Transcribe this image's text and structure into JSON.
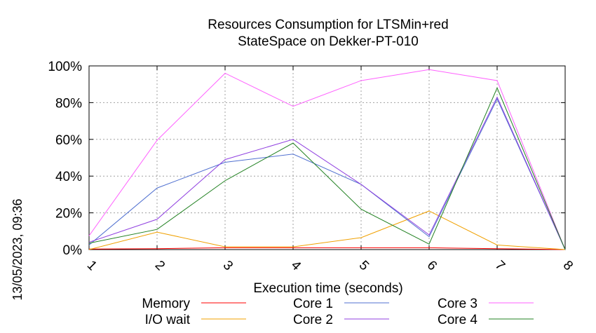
{
  "chart_data": {
    "type": "line",
    "title": [
      "Resources Consumption for LTSMin+red",
      "StateSpace on Dekker-PT-010"
    ],
    "xlabel": "Execution time (seconds)",
    "ylabel": "",
    "timestamp": "13/05/2023, 09:36",
    "x": [
      1,
      2,
      3,
      4,
      5,
      6,
      7,
      8
    ],
    "xlim": [
      1,
      8
    ],
    "ylim": [
      0,
      100
    ],
    "xticks": [
      "1",
      "2",
      "3",
      "4",
      "5",
      "6",
      "7",
      "8"
    ],
    "yticks": [
      "0%",
      "20%",
      "40%",
      "60%",
      "80%",
      "100%"
    ],
    "ytick_values": [
      0,
      20,
      40,
      60,
      80,
      100
    ],
    "grid": true,
    "legend_position": "bottom",
    "series": [
      {
        "name": "Memory",
        "color": "#ff0000",
        "values": [
          0.3,
          0.5,
          1,
          1,
          1,
          1,
          0.5,
          0
        ]
      },
      {
        "name": "I/O wait",
        "color": "#f0a000",
        "values": [
          0,
          9.5,
          1.5,
          1.5,
          6.5,
          21,
          2.5,
          0
        ]
      },
      {
        "name": "Core 1",
        "color": "#5070d0",
        "values": [
          2.5,
          33.5,
          47.5,
          52,
          35.5,
          7,
          82,
          0
        ]
      },
      {
        "name": "Core 2",
        "color": "#9040e0",
        "values": [
          4,
          16.5,
          49,
          60,
          35.5,
          8,
          83,
          0
        ]
      },
      {
        "name": "Core 3",
        "color": "#ff60ff",
        "values": [
          7.5,
          59.5,
          96,
          78,
          92,
          98,
          92,
          0
        ]
      },
      {
        "name": "Core 4",
        "color": "#208020",
        "values": [
          3.5,
          11,
          37.5,
          58,
          22,
          3,
          88,
          0
        ]
      }
    ]
  }
}
